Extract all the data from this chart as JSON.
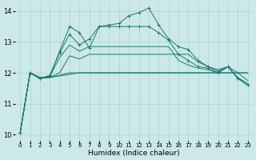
{
  "xlabel": "Humidex (Indice chaleur)",
  "bg_color": "#cce8e8",
  "line_color": "#1a7a6e",
  "grid_color": "#aad4d4",
  "xlim": [
    -0.5,
    23.5
  ],
  "ylim": [
    9.8,
    14.25
  ],
  "yticks": [
    10,
    11,
    12,
    13,
    14
  ],
  "xtick_labels": [
    "0",
    "1",
    "2",
    "3",
    "4",
    "5",
    "6",
    "7",
    "8",
    "9",
    "10",
    "11",
    "12",
    "13",
    "14",
    "15",
    "16",
    "17",
    "18",
    "19",
    "20",
    "21",
    "22",
    "23"
  ],
  "series": [
    {
      "y": [
        10.05,
        12.0,
        11.85,
        11.85,
        11.9,
        11.95,
        12.0,
        12.0,
        12.0,
        12.0,
        12.0,
        12.0,
        12.0,
        12.0,
        12.0,
        12.0,
        12.0,
        12.0,
        12.0,
        12.0,
        12.0,
        12.0,
        12.0,
        12.0
      ],
      "marker": false
    },
    {
      "y": [
        10.05,
        12.0,
        11.85,
        11.85,
        11.92,
        12.0,
        12.0,
        12.0,
        12.0,
        12.0,
        12.0,
        12.0,
        12.0,
        12.0,
        12.0,
        12.0,
        12.0,
        12.0,
        12.0,
        12.0,
        12.0,
        12.0,
        12.0,
        12.0
      ],
      "marker": false
    },
    {
      "y": [
        10.05,
        12.0,
        11.82,
        11.85,
        12.0,
        12.55,
        12.45,
        12.6,
        12.6,
        12.6,
        12.6,
        12.6,
        12.6,
        12.6,
        12.6,
        12.6,
        12.6,
        12.6,
        12.35,
        12.2,
        12.1,
        12.2,
        12.0,
        11.75
      ],
      "marker": false
    },
    {
      "y": [
        10.05,
        12.0,
        11.82,
        11.88,
        12.5,
        12.9,
        12.7,
        12.85,
        12.85,
        12.85,
        12.85,
        12.85,
        12.85,
        12.85,
        12.85,
        12.85,
        12.4,
        12.25,
        12.15,
        12.1,
        12.0,
        12.2,
        11.85,
        11.65
      ],
      "marker": false
    },
    {
      "y": [
        10.05,
        12.0,
        11.82,
        11.92,
        12.65,
        13.25,
        12.9,
        13.1,
        13.5,
        13.5,
        13.5,
        13.5,
        13.5,
        13.5,
        13.3,
        13.05,
        12.6,
        12.4,
        12.2,
        12.15,
        12.0,
        12.2,
        11.82,
        11.6
      ],
      "marker": true
    },
    {
      "y": [
        10.05,
        12.0,
        11.82,
        11.9,
        12.7,
        13.5,
        13.3,
        12.8,
        13.5,
        13.55,
        13.6,
        13.85,
        13.95,
        14.1,
        13.55,
        13.1,
        12.85,
        12.75,
        12.4,
        12.2,
        12.05,
        12.2,
        11.82,
        11.6
      ],
      "marker": true
    }
  ]
}
